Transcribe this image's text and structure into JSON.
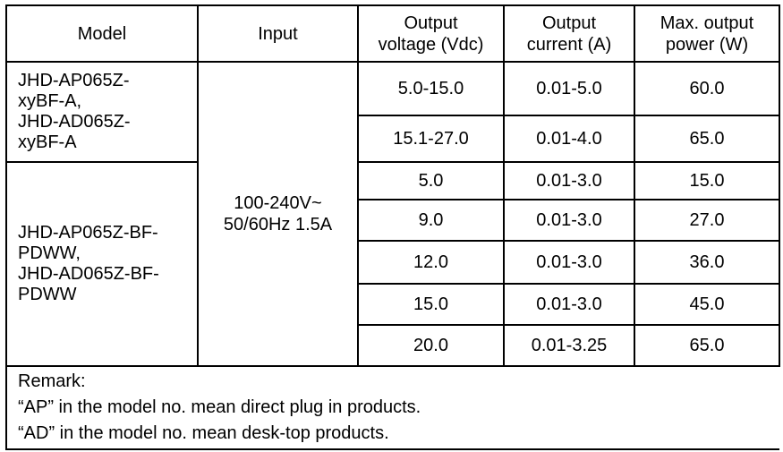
{
  "headers": [
    "Model",
    "Input",
    "Output voltage (Vdc)",
    "Output current (A)",
    "Max. output power (W)"
  ],
  "header_lines": {
    "voltage": [
      "Output",
      "voltage (Vdc)"
    ],
    "current": [
      "Output",
      "current (A)"
    ],
    "power": [
      "Max. output",
      "power (W)"
    ]
  },
  "input": [
    "100-240V~",
    "50/60Hz 1.5A"
  ],
  "groups": [
    {
      "model_lines": [
        "JHD-AP065Z-",
        "xyBF-A,",
        "JHD-AD065Z-",
        "xyBF-A"
      ],
      "rows": [
        {
          "voltage": "5.0-15.0",
          "current": "0.01-5.0",
          "power": "60.0"
        },
        {
          "voltage": "15.1-27.0",
          "current": "0.01-4.0",
          "power": "65.0"
        }
      ]
    },
    {
      "model_lines": [
        "JHD-AP065Z-BF-",
        "PDWW,",
        "JHD-AD065Z-BF-",
        "PDWW"
      ],
      "rows": [
        {
          "voltage": "5.0",
          "current": "0.01-3.0",
          "power": "15.0"
        },
        {
          "voltage": "9.0",
          "current": "0.01-3.0",
          "power": "27.0"
        },
        {
          "voltage": "12.0",
          "current": "0.01-3.0",
          "power": "36.0"
        },
        {
          "voltage": "15.0",
          "current": "0.01-3.0",
          "power": "45.0"
        },
        {
          "voltage": "20.0",
          "current": "0.01-3.25",
          "power": "65.0"
        }
      ]
    }
  ],
  "remark": [
    "Remark:",
    "“AP” in the model no. mean direct plug in products.",
    "“AD” in the model no. mean desk-top products."
  ]
}
